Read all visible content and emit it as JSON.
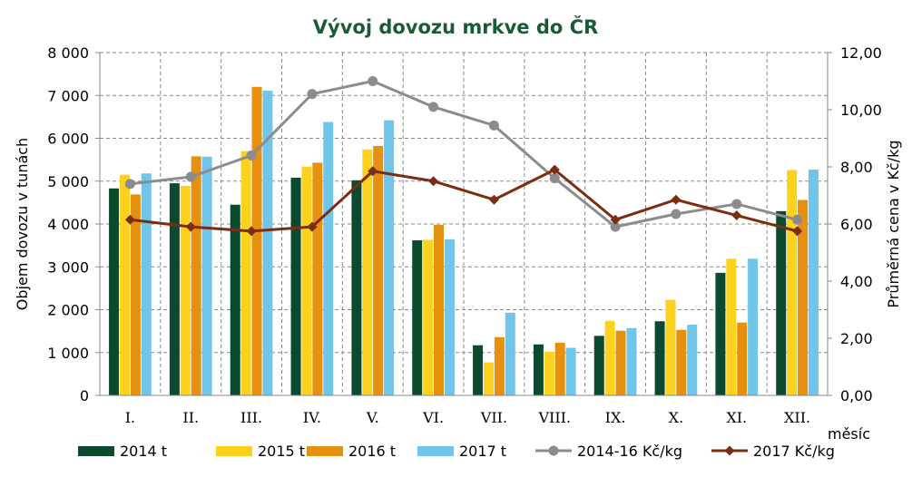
{
  "chart_data": {
    "type": "bar",
    "title": "Vývoj dovozu mrkve do ČR",
    "xlabel": "měsíc",
    "ylabel": "Objem dovozu v tunách",
    "y2label": "Průměrná cena v Kč/kg",
    "ylim": [
      0,
      8000
    ],
    "y2lim": [
      0,
      12
    ],
    "yticks": [
      "0",
      "1 000",
      "2 000",
      "3 000",
      "4 000",
      "5 000",
      "6 000",
      "7 000",
      "8 000"
    ],
    "y2ticks": [
      "0,00",
      "2,00",
      "4,00",
      "6,00",
      "8,00",
      "10,00",
      "12,00"
    ],
    "grid": true,
    "legend_position": "bottom",
    "categories": [
      "I.",
      "II.",
      "III.",
      "IV.",
      "V.",
      "VI.",
      "VII.",
      "VIII.",
      "IX.",
      "X.",
      "XI.",
      "XII."
    ],
    "bar_series": [
      {
        "name": "2014 t",
        "color": "#0b4a2e",
        "values": [
          4830,
          4950,
          4450,
          5080,
          5020,
          3620,
          1170,
          1190,
          1390,
          1730,
          2860,
          4300
        ]
      },
      {
        "name": "2015 t",
        "color": "#fcd21f",
        "values": [
          5150,
          4890,
          5700,
          5340,
          5740,
          3630,
          770,
          1020,
          1740,
          2230,
          3190,
          5260
        ]
      },
      {
        "name": "2016 t",
        "color": "#e5900f",
        "values": [
          4690,
          5580,
          7200,
          5430,
          5820,
          3980,
          1360,
          1230,
          1510,
          1530,
          1700,
          4560
        ]
      },
      {
        "name": "2017 t",
        "color": "#70c5e8",
        "values": [
          5180,
          5570,
          7110,
          6380,
          6420,
          3640,
          1930,
          1110,
          1570,
          1650,
          3190,
          5270
        ]
      }
    ],
    "line_series": [
      {
        "name": "2014-16 Kč/kg",
        "color": "#8c8c8c",
        "axis": "right",
        "marker": "circle",
        "values": [
          7.4,
          7.65,
          8.4,
          10.55,
          11.0,
          10.1,
          9.45,
          7.6,
          5.9,
          6.35,
          6.7,
          6.15
        ]
      },
      {
        "name": "2017 Kč/kg",
        "color": "#7b2d12",
        "axis": "right",
        "marker": "diamond",
        "values": [
          6.15,
          5.9,
          5.75,
          5.9,
          7.85,
          7.5,
          6.85,
          7.9,
          6.15,
          6.85,
          6.3,
          5.75
        ]
      }
    ]
  }
}
